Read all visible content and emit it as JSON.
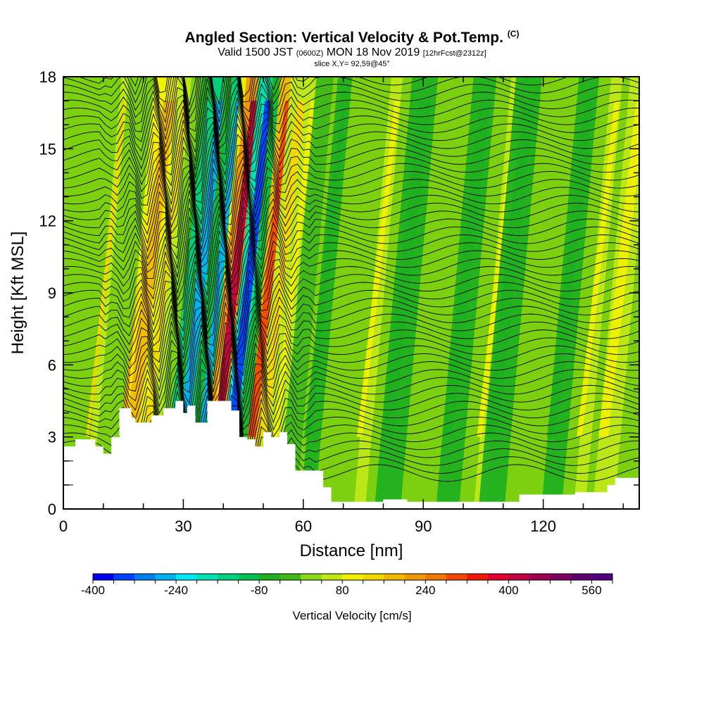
{
  "title": {
    "main": "Angled Section: Vertical Velocity & Pot.Temp.",
    "main_suffix": "(C)",
    "valid_prefix": "Valid 1500 JST",
    "valid_utc": "(0600Z)",
    "valid_date": "MON 18 Nov 2019",
    "forecast": "[12hrFcst@2312z]",
    "slice": "slice X,Y= 92,59@45°"
  },
  "chart_data": {
    "type": "heatmap",
    "xlabel": "Distance [nm]",
    "ylabel": "Height [Kft MSL]",
    "xlim": [
      0,
      144
    ],
    "ylim": [
      0,
      18
    ],
    "x_ticks": [
      "0",
      "30",
      "60",
      "90",
      "120"
    ],
    "x_tick_values": [
      0,
      30,
      60,
      90,
      120
    ],
    "y_ticks": [
      "0",
      "3",
      "6",
      "9",
      "12",
      "15",
      "18"
    ],
    "y_tick_values": [
      0,
      3,
      6,
      9,
      12,
      15,
      18
    ],
    "colorbar": {
      "label": "Vertical Velocity [cm/s]",
      "min": -400,
      "max": 600,
      "step": 40,
      "labels": [
        "-400",
        "-240",
        "-80",
        "80",
        "240",
        "400",
        "560"
      ],
      "label_values": [
        -400,
        -240,
        -80,
        80,
        240,
        400,
        560
      ],
      "colors": [
        "#0000f0",
        "#0040ff",
        "#0080f0",
        "#00b0f0",
        "#00e8f0",
        "#00e0b0",
        "#00d080",
        "#00c050",
        "#20b020",
        "#40b818",
        "#88d818",
        "#c0e818",
        "#f0f000",
        "#f0d800",
        "#f0b800",
        "#f09800",
        "#f07800",
        "#f04800",
        "#f01800",
        "#e00030",
        "#c00040",
        "#a00050",
        "#800060",
        "#600070",
        "#500080"
      ]
    },
    "updraft_columns": [
      {
        "x": 11,
        "w": 0.5,
        "value": 140
      },
      {
        "x": 20,
        "w": 0.9,
        "value": 200
      },
      {
        "x": 22,
        "w": 1.8,
        "value": 160
      },
      {
        "x": 26,
        "w": 0.9,
        "value": 120
      },
      {
        "x": 32,
        "w": 1.0,
        "value": -140
      },
      {
        "x": 35,
        "w": 1.4,
        "value": -260
      },
      {
        "x": 37.5,
        "w": 0.8,
        "value": -100
      },
      {
        "x": 39.5,
        "w": 0.9,
        "value": -260
      },
      {
        "x": 41.5,
        "w": 0.8,
        "value": 200
      },
      {
        "x": 43.5,
        "w": 1.2,
        "value": 420
      },
      {
        "x": 45.5,
        "w": 0.6,
        "value": -220
      },
      {
        "x": 47,
        "w": 1.3,
        "value": -360
      },
      {
        "x": 49,
        "w": 0.6,
        "value": -120
      },
      {
        "x": 52,
        "w": 1.2,
        "value": 300
      },
      {
        "x": 55,
        "w": 1.4,
        "value": 140
      },
      {
        "x": 58,
        "w": 0.8,
        "value": 100
      },
      {
        "x": 61,
        "w": 1.2,
        "value": -40
      },
      {
        "x": 66,
        "w": 1.0,
        "value": -80
      },
      {
        "x": 79,
        "w": 0.8,
        "value": 100
      },
      {
        "x": 86,
        "w": 1.8,
        "value": -80
      },
      {
        "x": 101,
        "w": 1.6,
        "value": -80
      },
      {
        "x": 109,
        "w": 0.8,
        "value": 100
      },
      {
        "x": 112,
        "w": 1.8,
        "value": -80
      },
      {
        "x": 127,
        "w": 1.4,
        "value": -80
      },
      {
        "x": 134,
        "w": 0.8,
        "value": 100
      },
      {
        "x": 140,
        "w": 1.5,
        "value": 80
      }
    ],
    "terrain": [
      [
        0,
        2.6
      ],
      [
        3,
        2.9
      ],
      [
        8,
        2.6
      ],
      [
        10,
        2.3
      ],
      [
        12,
        3.0
      ],
      [
        14,
        4.2
      ],
      [
        17,
        3.8
      ],
      [
        18,
        3.6
      ],
      [
        22,
        3.9
      ],
      [
        25,
        4.2
      ],
      [
        28,
        4.5
      ],
      [
        30,
        4.0
      ],
      [
        31,
        4.3
      ],
      [
        33,
        3.6
      ],
      [
        36,
        4.5
      ],
      [
        42,
        4.1
      ],
      [
        44,
        3.0
      ],
      [
        46,
        2.9
      ],
      [
        48,
        2.6
      ],
      [
        50,
        3.2
      ],
      [
        52,
        3.0
      ],
      [
        54,
        3.2
      ],
      [
        56,
        2.7
      ],
      [
        58,
        1.6
      ],
      [
        62,
        1.6
      ],
      [
        65,
        0.9
      ],
      [
        67,
        0.3
      ],
      [
        80,
        0.4
      ],
      [
        86,
        0.3
      ],
      [
        100,
        0.3
      ],
      [
        113,
        0.3
      ],
      [
        114,
        0.6
      ],
      [
        120,
        0.6
      ],
      [
        128,
        0.7
      ],
      [
        136,
        1.0
      ],
      [
        138,
        1.3
      ],
      [
        144,
        1.3
      ]
    ]
  }
}
